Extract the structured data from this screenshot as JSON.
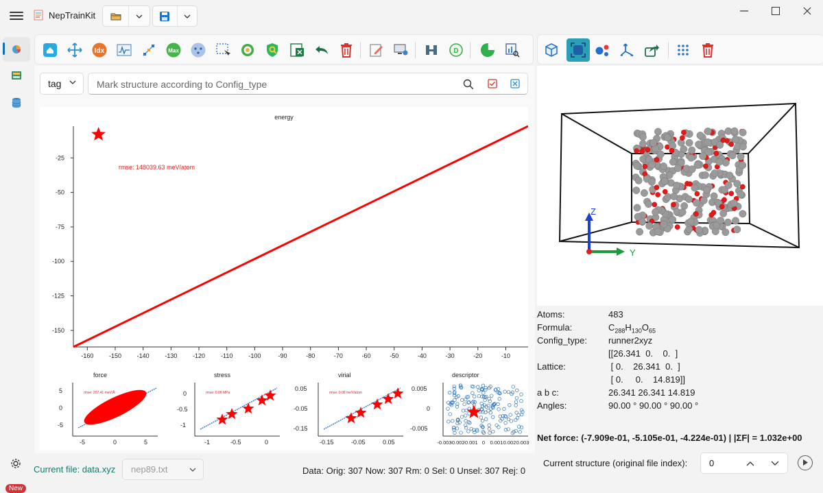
{
  "app": {
    "title": "NepTrainKit"
  },
  "search": {
    "tag_label": "tag",
    "placeholder": "Mark structure according to Config_type"
  },
  "toolbar": {
    "idx_label": "Idx",
    "max_label": "Max"
  },
  "plots": {
    "main": {
      "title": "energy",
      "rmse": "rmse: 148039.63 meV/atom",
      "yticks": [
        "-25",
        "-50",
        "-75",
        "-100",
        "-125",
        "-150"
      ],
      "xticks": [
        "-160",
        "-150",
        "-140",
        "-130",
        "-120",
        "-110",
        "-100",
        "-90",
        "-80",
        "-70",
        "-60",
        "-50",
        "-40",
        "-30",
        "-20",
        "-10"
      ]
    },
    "force": {
      "title": "force",
      "rmse": "rmse: 207.41 meV/Å",
      "yticks": [
        "5",
        "0",
        "-5"
      ],
      "xticks": [
        "-5",
        "0",
        "5"
      ]
    },
    "stress": {
      "title": "stress",
      "rmse": "rmse: 0.08 MPa",
      "yticks": [
        "0",
        "-0.5",
        "-1"
      ],
      "xticks": [
        "-1",
        "-0.5",
        "0"
      ]
    },
    "virial": {
      "title": "virial",
      "rmse": "rmse: 0.08 meV/atom",
      "yticks": [
        "0.05",
        "-0.05",
        "-0.15"
      ],
      "xticks": [
        "-0.15",
        "-0.05",
        "0.05"
      ]
    },
    "descriptor": {
      "title": "descriptor",
      "yticks": [
        "0.005",
        "0",
        "-0.005"
      ],
      "xticks": [
        "-0.003",
        "-0.002",
        "-0.001",
        "0",
        "0.001",
        "0.002",
        "0.003"
      ]
    }
  },
  "chart_data": [
    {
      "type": "scatter",
      "title": "energy",
      "x_range": [
        -165,
        -2
      ],
      "y_range": [
        -162,
        -2
      ],
      "series": [
        {
          "x": [
            -165,
            -2
          ],
          "y": [
            -162,
            -2
          ]
        }
      ],
      "highlight": {
        "x": -156,
        "y": -8
      },
      "annotations": [
        "rmse: 148039.63 meV/atom"
      ]
    },
    {
      "type": "scatter",
      "title": "force",
      "annotations": [
        "rmse: 207.41 meV/Å"
      ]
    },
    {
      "type": "scatter",
      "title": "stress",
      "annotations": [
        "rmse: 0.08 MPa"
      ]
    },
    {
      "type": "scatter",
      "title": "virial",
      "annotations": [
        "rmse: 0.08 meV/atom"
      ]
    },
    {
      "type": "scatter",
      "title": "descriptor"
    }
  ],
  "viewer": {
    "axis_z": "Z",
    "axis_y": "Y"
  },
  "info": {
    "atoms_label": "Atoms:",
    "atoms_value": "483",
    "formula_label": "Formula:",
    "formula_value": "C288H130O65",
    "config_label": "Config_type:",
    "config_value": "runner2xyz",
    "lattice_label": "Lattice:",
    "lattice_row1": "[[26.341  0.    0.  ]",
    "lattice_row2": " [ 0.    26.341  0.  ]",
    "lattice_row3": " [ 0.     0.    14.819]]",
    "abc_label": "a b c:",
    "abc_value": "26.341 26.341 14.819",
    "angles_label": "Angles:",
    "angles_value": "90.00 ° 90.00 ° 90.00 °",
    "net_force": "Net force: (-7.909e-01, -5.105e-01, -4.224e-01) | |ΣF| = 1.032e+00"
  },
  "statusbar": {
    "current_file": "Current file: data.xyz",
    "nep_file": "nep89.txt",
    "data_summary": "Data: Orig: 307 Now: 307 Rm: 0 Sel: 0 Unsel: 307 Rej: 0",
    "current_structure_label": "Current structure (original file index):",
    "current_structure_value": "0",
    "new_badge": "New"
  }
}
